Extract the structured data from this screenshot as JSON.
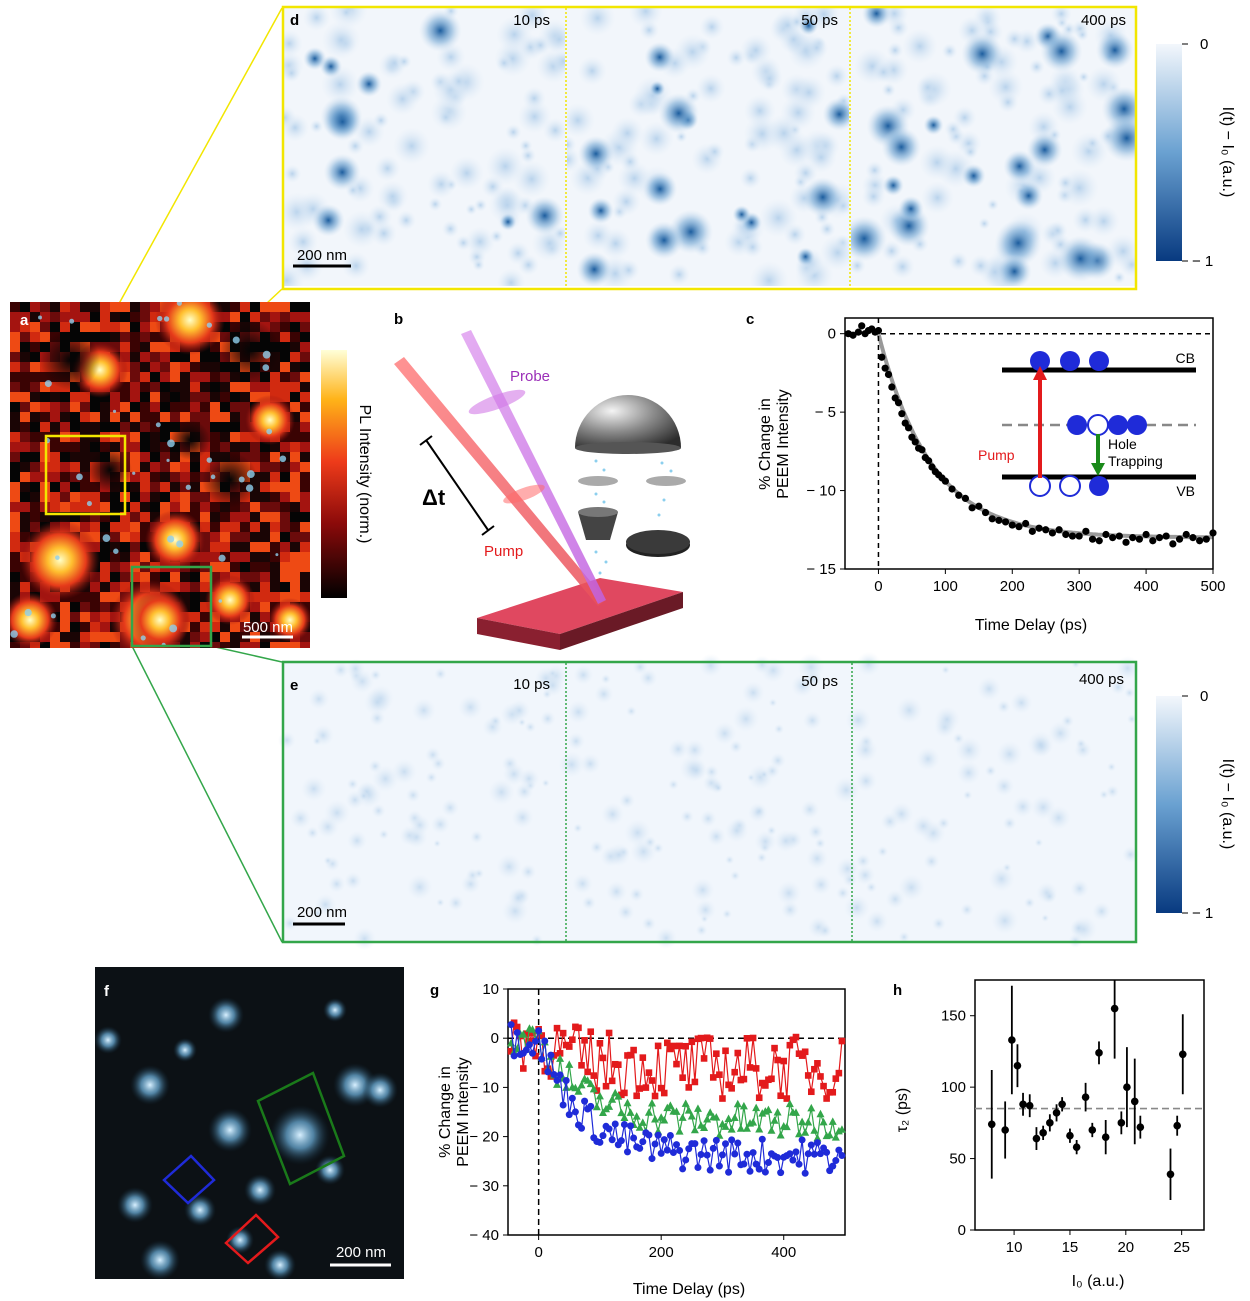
{
  "panel_labels": {
    "a": "a",
    "b": "b",
    "c": "c",
    "d": "d",
    "e": "e",
    "f": "f",
    "g": "g",
    "h": "h"
  },
  "colors": {
    "yellow": "#f2e600",
    "green": "#33a64a",
    "red": "#e31a1c",
    "blue": "#1f2bd8",
    "black": "#111111",
    "gray_dash": "#888888"
  },
  "panel_a": {
    "colorbar_label": "PL Intensity (norm.)",
    "scalebar": "500 nm"
  },
  "panel_b": {
    "probe_label": "Probe",
    "pump_label": "Pump",
    "delay_label": "Δt"
  },
  "panel_d": {
    "time_labels": [
      "10 ps",
      "50 ps",
      "400 ps"
    ],
    "scalebar": "200 nm",
    "colorbar_label": "I(t) − I₀ (a.u.)",
    "colorbar_ticks": [
      "0",
      "− 1"
    ]
  },
  "panel_e": {
    "time_labels": [
      "10 ps",
      "50 ps",
      "400 ps"
    ],
    "scalebar": "200 nm",
    "colorbar_label": "I(t) − I₀ (a.u.)",
    "colorbar_ticks": [
      "0",
      "− 1"
    ]
  },
  "panel_f": {
    "scalebar": "200 nm"
  },
  "inset_c": {
    "cb": "CB",
    "vb": "VB",
    "pump": "Pump",
    "hole": "Hole",
    "trapping": "Trapping"
  },
  "chart_data": [
    {
      "id": "c",
      "type": "scatter",
      "xlabel": "Time Delay (ps)",
      "ylabel": "% Change in PEEM Intensity",
      "xlim": [
        -50,
        500
      ],
      "ylim": [
        -15,
        1
      ],
      "xticks": [
        0,
        100,
        200,
        300,
        400,
        500
      ],
      "yticks": [
        0,
        -5,
        -10,
        -15
      ],
      "ytick_labels": [
        "0",
        "− 5",
        "− 10",
        "− 15"
      ],
      "fit": {
        "amplitude": -13.0,
        "tau_ps": 78
      },
      "series": [
        {
          "values": [
            [
              -45,
              0.0
            ],
            [
              -38,
              -0.1
            ],
            [
              -30,
              0.1
            ],
            [
              -25,
              0.5
            ],
            [
              -20,
              0.0
            ],
            [
              -15,
              0.2
            ],
            [
              -10,
              0.3
            ],
            [
              -5,
              0.1
            ],
            [
              0,
              0.2
            ],
            [
              5,
              -1.5
            ],
            [
              10,
              -2.2
            ],
            [
              15,
              -2.6
            ],
            [
              20,
              -3.4
            ],
            [
              25,
              -4.1
            ],
            [
              30,
              -4.4
            ],
            [
              35,
              -5.1
            ],
            [
              40,
              -5.7
            ],
            [
              45,
              -6.0
            ],
            [
              50,
              -6.6
            ],
            [
              55,
              -6.9
            ],
            [
              60,
              -7.3
            ],
            [
              65,
              -7.4
            ],
            [
              70,
              -7.9
            ],
            [
              75,
              -8.1
            ],
            [
              80,
              -8.5
            ],
            [
              85,
              -8.8
            ],
            [
              90,
              -9.0
            ],
            [
              95,
              -9.2
            ],
            [
              100,
              -9.4
            ],
            [
              110,
              -9.9
            ],
            [
              120,
              -10.3
            ],
            [
              130,
              -10.5
            ],
            [
              140,
              -11.1
            ],
            [
              150,
              -11.0
            ],
            [
              160,
              -11.4
            ],
            [
              170,
              -11.8
            ],
            [
              180,
              -11.9
            ],
            [
              190,
              -12.0
            ],
            [
              200,
              -12.2
            ],
            [
              210,
              -12.3
            ],
            [
              220,
              -12.1
            ],
            [
              230,
              -12.6
            ],
            [
              240,
              -12.4
            ],
            [
              250,
              -12.5
            ],
            [
              260,
              -12.7
            ],
            [
              270,
              -12.5
            ],
            [
              280,
              -12.8
            ],
            [
              290,
              -12.9
            ],
            [
              300,
              -12.9
            ],
            [
              310,
              -12.6
            ],
            [
              320,
              -13.1
            ],
            [
              330,
              -13.2
            ],
            [
              340,
              -12.8
            ],
            [
              350,
              -13.0
            ],
            [
              360,
              -12.9
            ],
            [
              370,
              -13.3
            ],
            [
              380,
              -13.0
            ],
            [
              390,
              -13.1
            ],
            [
              400,
              -12.8
            ],
            [
              410,
              -13.2
            ],
            [
              420,
              -13.0
            ],
            [
              430,
              -12.9
            ],
            [
              440,
              -13.4
            ],
            [
              450,
              -13.1
            ],
            [
              460,
              -12.8
            ],
            [
              470,
              -13.0
            ],
            [
              480,
              -13.2
            ],
            [
              490,
              -13.1
            ],
            [
              500,
              -12.7
            ]
          ]
        }
      ]
    },
    {
      "id": "g",
      "type": "line",
      "xlabel": "Time Delay (ps)",
      "ylabel": "% Change in PEEM Intensity",
      "xlim": [
        -50,
        500
      ],
      "ylim": [
        -40,
        10
      ],
      "xticks": [
        0,
        200,
        400
      ],
      "yticks": [
        10,
        0,
        -10,
        -20,
        -30,
        -40
      ],
      "ytick_labels": [
        "10",
        "0",
        "− 10",
        "− 20",
        "− 30",
        "− 40"
      ],
      "series": [
        {
          "color": "red",
          "marker": "square",
          "level": -6
        },
        {
          "color": "green",
          "marker": "triangle",
          "level": -17
        },
        {
          "color": "blue",
          "marker": "circle",
          "level": -24
        }
      ]
    },
    {
      "id": "h",
      "type": "scatter",
      "xlabel": "I₀ (a.u.)",
      "ylabel": "τ₂ (ps)",
      "xlim": [
        6.5,
        27
      ],
      "ylim": [
        0,
        175
      ],
      "xticks": [
        10,
        15,
        20,
        25
      ],
      "yticks": [
        0,
        50,
        100,
        150
      ],
      "mean_line": 85,
      "points": [
        {
          "x": 8,
          "y": 74,
          "err": 38
        },
        {
          "x": 9.2,
          "y": 70,
          "err": 20
        },
        {
          "x": 9.8,
          "y": 133,
          "err": 38
        },
        {
          "x": 10.3,
          "y": 115,
          "err": 15
        },
        {
          "x": 10.8,
          "y": 88,
          "err": 8
        },
        {
          "x": 11.4,
          "y": 87,
          "err": 8
        },
        {
          "x": 12,
          "y": 64,
          "err": 8
        },
        {
          "x": 12.6,
          "y": 68,
          "err": 5
        },
        {
          "x": 13.2,
          "y": 75,
          "err": 6
        },
        {
          "x": 13.8,
          "y": 82,
          "err": 6
        },
        {
          "x": 14.3,
          "y": 88,
          "err": 5
        },
        {
          "x": 15,
          "y": 66,
          "err": 5
        },
        {
          "x": 15.6,
          "y": 58,
          "err": 5
        },
        {
          "x": 16.4,
          "y": 93,
          "err": 10
        },
        {
          "x": 17,
          "y": 70,
          "err": 5
        },
        {
          "x": 17.6,
          "y": 124,
          "err": 8
        },
        {
          "x": 18.2,
          "y": 65,
          "err": 12
        },
        {
          "x": 19,
          "y": 155,
          "err": 35
        },
        {
          "x": 19.6,
          "y": 75,
          "err": 8
        },
        {
          "x": 20.1,
          "y": 100,
          "err": 28
        },
        {
          "x": 20.8,
          "y": 90,
          "err": 30
        },
        {
          "x": 21.3,
          "y": 72,
          "err": 8
        },
        {
          "x": 24,
          "y": 39,
          "err": 18
        },
        {
          "x": 24.6,
          "y": 73,
          "err": 7
        },
        {
          "x": 25.1,
          "y": 123,
          "err": 28
        }
      ]
    }
  ]
}
